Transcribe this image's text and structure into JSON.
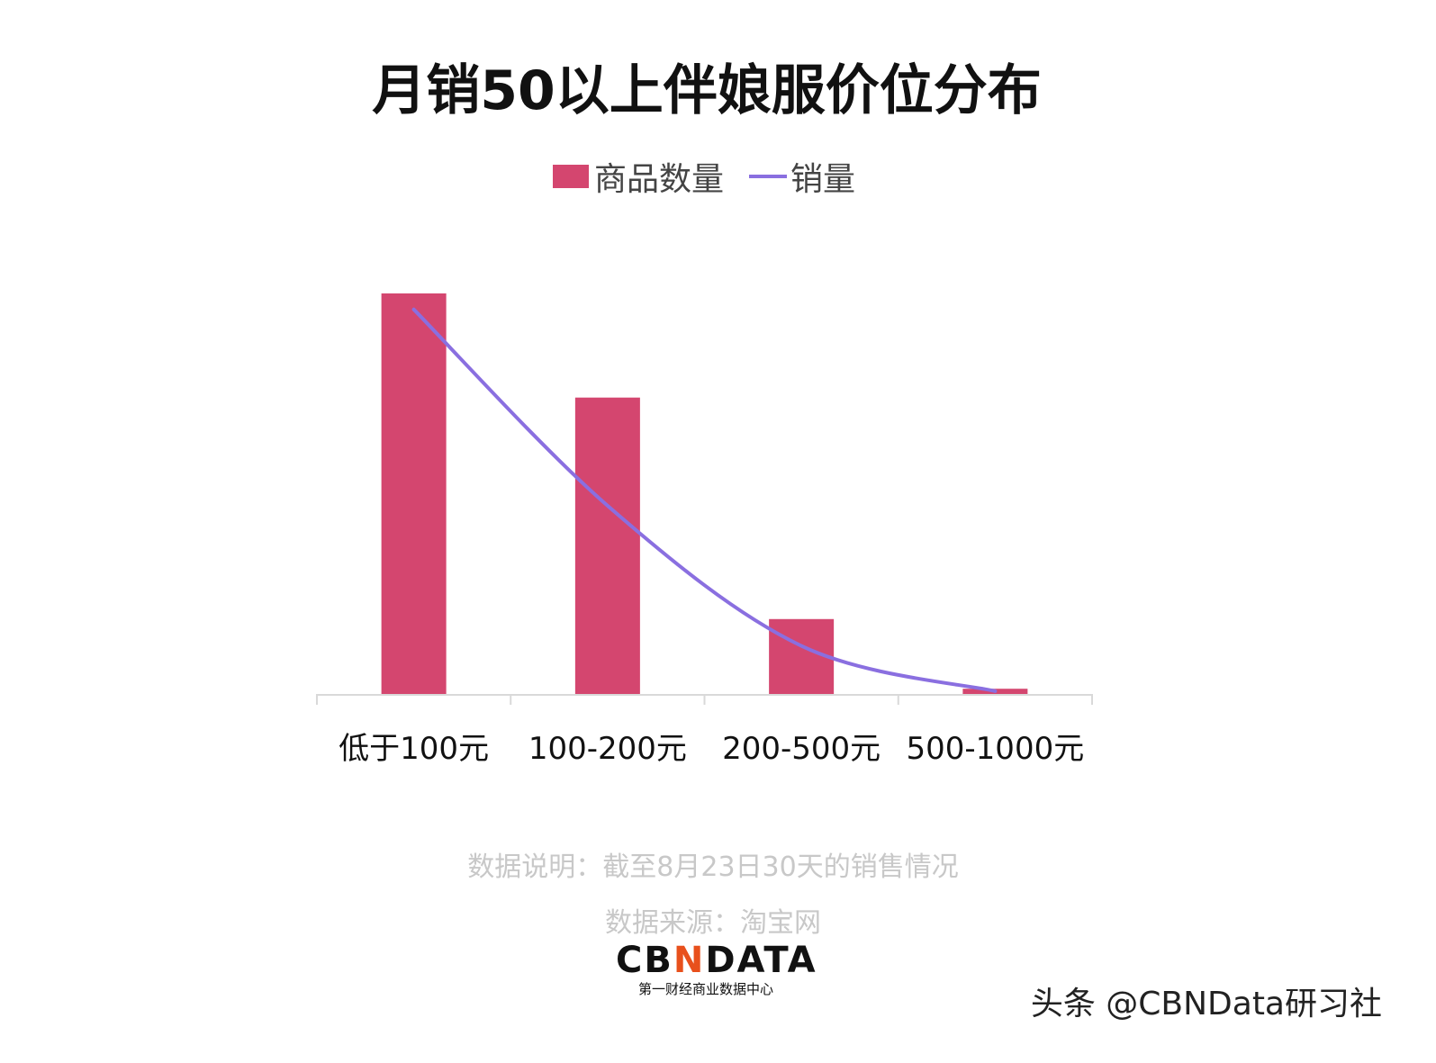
{
  "chart_data": {
    "type": "bar",
    "title": "月销50以上伴娘服价位分布",
    "categories": [
      "低于100元",
      "100-200元",
      "200-500元",
      "500-1000元"
    ],
    "series": [
      {
        "name": "商品数量",
        "type": "bar",
        "color": "#d4466f",
        "values": [
          100,
          74,
          18.7,
          1.3
        ]
      },
      {
        "name": "销量",
        "type": "line",
        "color": "#8a6fe0",
        "values": [
          96,
          47,
          12,
          0.7
        ]
      }
    ],
    "xlabel": "",
    "ylabel": "",
    "grid": false,
    "legend": "top",
    "ylim": [
      0,
      100
    ]
  },
  "notes": {
    "description": "数据说明：截至8月23日30天的销售情况",
    "source": "数据来源：淘宝网"
  },
  "logo": {
    "text": "CBNDATA",
    "subtitle": "第一财经商业数据中心"
  },
  "watermark": "头条 @CBNData研习社"
}
